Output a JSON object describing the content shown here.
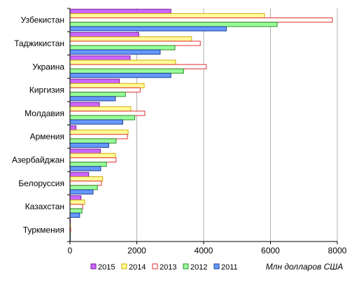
{
  "chart_data": {
    "type": "bar",
    "orientation": "horizontal",
    "categories": [
      "Узбекистан",
      "Таджикистан",
      "Украина",
      "Киргизия",
      "Молдавия",
      "Армения",
      "Азербайджан",
      "Белоруссия",
      "Казахстан",
      "Туркмения"
    ],
    "series": [
      {
        "name": "2015",
        "color": "#CC66FF",
        "border": "#7A1F99",
        "values": [
          3020,
          2060,
          1800,
          1480,
          880,
          180,
          910,
          560,
          330,
          10
        ]
      },
      {
        "name": "2014",
        "color": "#FFFF99",
        "border": "#D4A800",
        "values": [
          5820,
          3640,
          3160,
          2220,
          1820,
          1740,
          1360,
          980,
          440,
          15
        ]
      },
      {
        "name": "2013",
        "color": "#FFFFFF",
        "border": "#E03030",
        "values": [
          7850,
          3900,
          4080,
          2100,
          2240,
          1720,
          1380,
          940,
          380,
          20
        ]
      },
      {
        "name": "2012",
        "color": "#99FF99",
        "border": "#2E8B2E",
        "values": [
          6200,
          3140,
          3400,
          1660,
          1940,
          1380,
          1090,
          820,
          360,
          12
        ]
      },
      {
        "name": "2011",
        "color": "#6699FF",
        "border": "#1F3F8F",
        "values": [
          4680,
          2700,
          3020,
          1360,
          1580,
          1160,
          920,
          690,
          290,
          8
        ]
      }
    ],
    "xlim": [
      0,
      8000
    ],
    "xticks": [
      "0",
      "2000",
      "4000",
      "6000",
      "8000"
    ],
    "xlabel": "Млн долларов США",
    "grid": "vertical",
    "legend_position": "bottom"
  }
}
